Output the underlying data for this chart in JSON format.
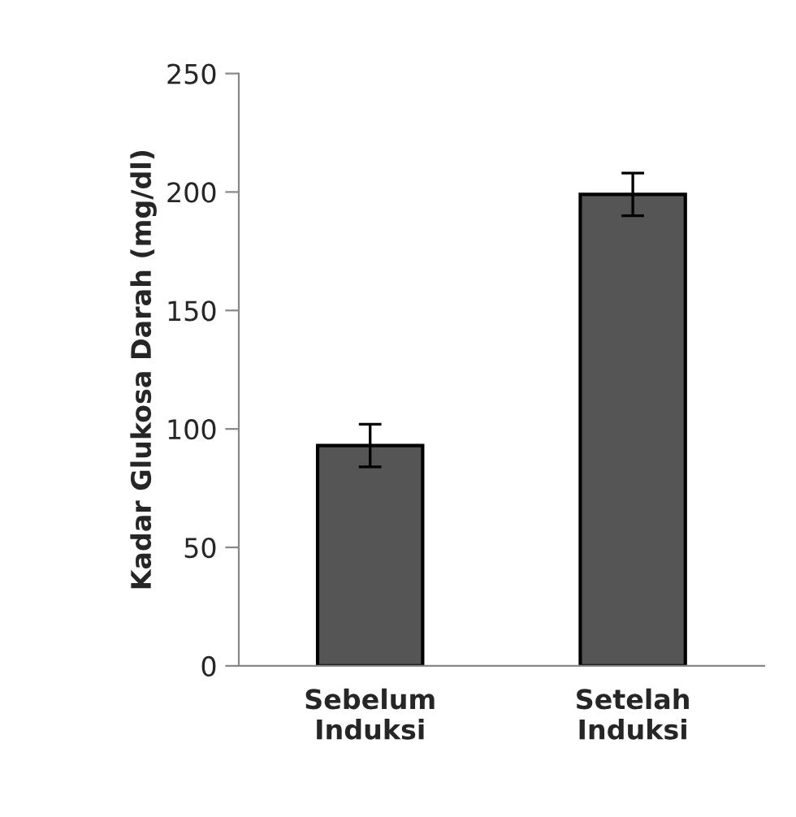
{
  "chart_data": {
    "type": "bar",
    "ylabel": "Kadar Glukosa Darah (mg/dl)",
    "categories": [
      "Sebelum\nInduksi",
      "Setelah\nInduksi"
    ],
    "values": [
      93,
      199
    ],
    "errors": [
      9,
      9
    ],
    "color": "#555555",
    "ylim": [
      0,
      250
    ],
    "yticks": [
      0,
      50,
      100,
      150,
      200,
      250
    ],
    "grid": false,
    "legend": false
  }
}
